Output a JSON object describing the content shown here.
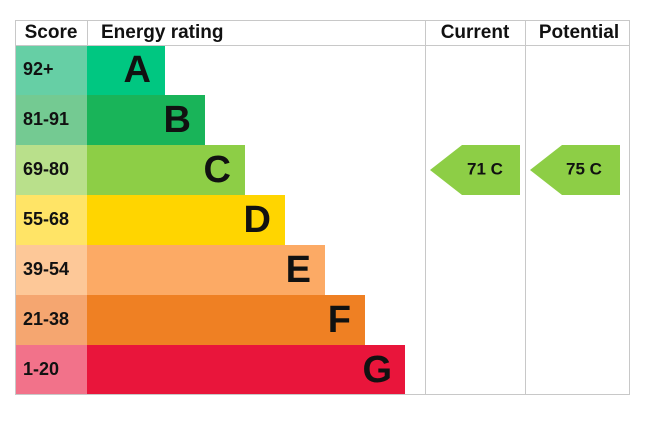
{
  "header": {
    "score": "Score",
    "energy_rating": "Energy rating",
    "current": "Current",
    "potential": "Potential"
  },
  "rows": [
    {
      "score": "92+",
      "letter": "A"
    },
    {
      "score": "81-91",
      "letter": "B"
    },
    {
      "score": "69-80",
      "letter": "C"
    },
    {
      "score": "55-68",
      "letter": "D"
    },
    {
      "score": "39-54",
      "letter": "E"
    },
    {
      "score": "21-38",
      "letter": "F"
    },
    {
      "score": "1-20",
      "letter": "G"
    }
  ],
  "current": {
    "label": "71 C"
  },
  "potential": {
    "label": "75 C"
  }
}
